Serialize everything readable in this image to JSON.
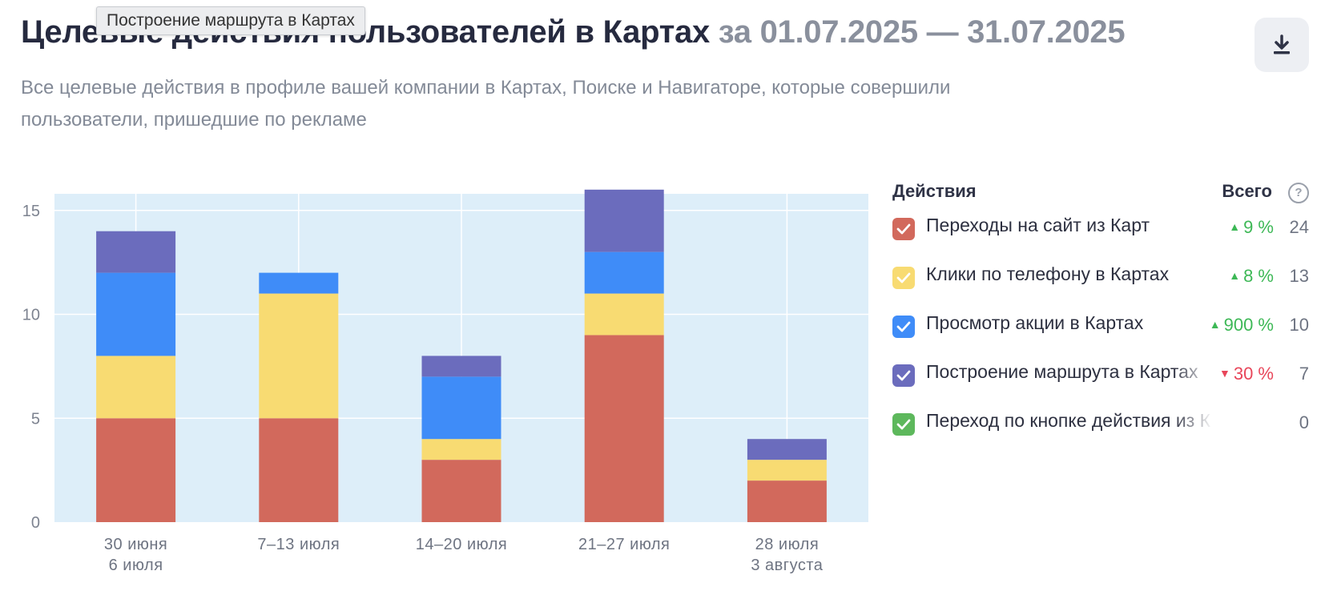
{
  "header": {
    "title": "Целевые действия пользователей в Картах",
    "date_range": "за 01.07.2025 — 31.07.2025",
    "subtitle": "Все целевые действия в профиле вашей компании в Картах, Поиске и Навигаторе, которые совершили пользователи, пришедшие по рекламе",
    "tooltip": "Построение маршрута в Картах",
    "download_icon": "download-icon"
  },
  "legend": {
    "header_actions": "Действия",
    "header_total": "Всего",
    "help_icon": "?",
    "items": [
      {
        "label": "Переходы на сайт из Карт",
        "change": "9 %",
        "direction": "up",
        "total": "24",
        "color": "#d2695c",
        "checked": true
      },
      {
        "label": "Клики по телефону в Картах",
        "change": "8 %",
        "direction": "up",
        "total": "13",
        "color": "#f8db72",
        "checked": true
      },
      {
        "label": "Просмотр акции в Картах",
        "change": "900 %",
        "direction": "up",
        "total": "10",
        "color": "#3f8cf8",
        "checked": true
      },
      {
        "label": "Построение маршрута в Картах",
        "change": "30 %",
        "direction": "down",
        "total": "7",
        "color": "#6b6cbd",
        "checked": true
      },
      {
        "label": "Переход по кнопке действия из Карт",
        "change": "",
        "direction": "",
        "total": "0",
        "color": "#5db85c",
        "checked": true
      }
    ]
  },
  "chart_data": {
    "type": "bar",
    "stacked": true,
    "categories": [
      [
        "30 июня",
        "6 июля"
      ],
      [
        "7–13 июля"
      ],
      [
        "14–20 июля"
      ],
      [
        "21–27 июля"
      ],
      [
        "28 июля",
        "3 августа"
      ]
    ],
    "series": [
      {
        "name": "Переходы на сайт из Карт",
        "values": [
          5,
          5,
          3,
          9,
          2
        ],
        "color": "#d2695c"
      },
      {
        "name": "Клики по телефону в Картах",
        "values": [
          3,
          6,
          1,
          2,
          1
        ],
        "color": "#f8db72"
      },
      {
        "name": "Просмотр акции в Картах",
        "values": [
          4,
          1,
          3,
          2,
          0
        ],
        "color": "#3f8cf8"
      },
      {
        "name": "Построение маршрута в Картах",
        "values": [
          2,
          0,
          1,
          3,
          1
        ],
        "color": "#6b6cbd"
      },
      {
        "name": "Переход по кнопке действия из Карт",
        "values": [
          0,
          0,
          0,
          0,
          0
        ],
        "color": "#5db85c"
      }
    ],
    "yticks": [
      0,
      5,
      10,
      15
    ],
    "ylim": [
      0,
      15.8
    ],
    "grid": true,
    "plot_background": "#ddeef9",
    "legend_position": "right"
  }
}
